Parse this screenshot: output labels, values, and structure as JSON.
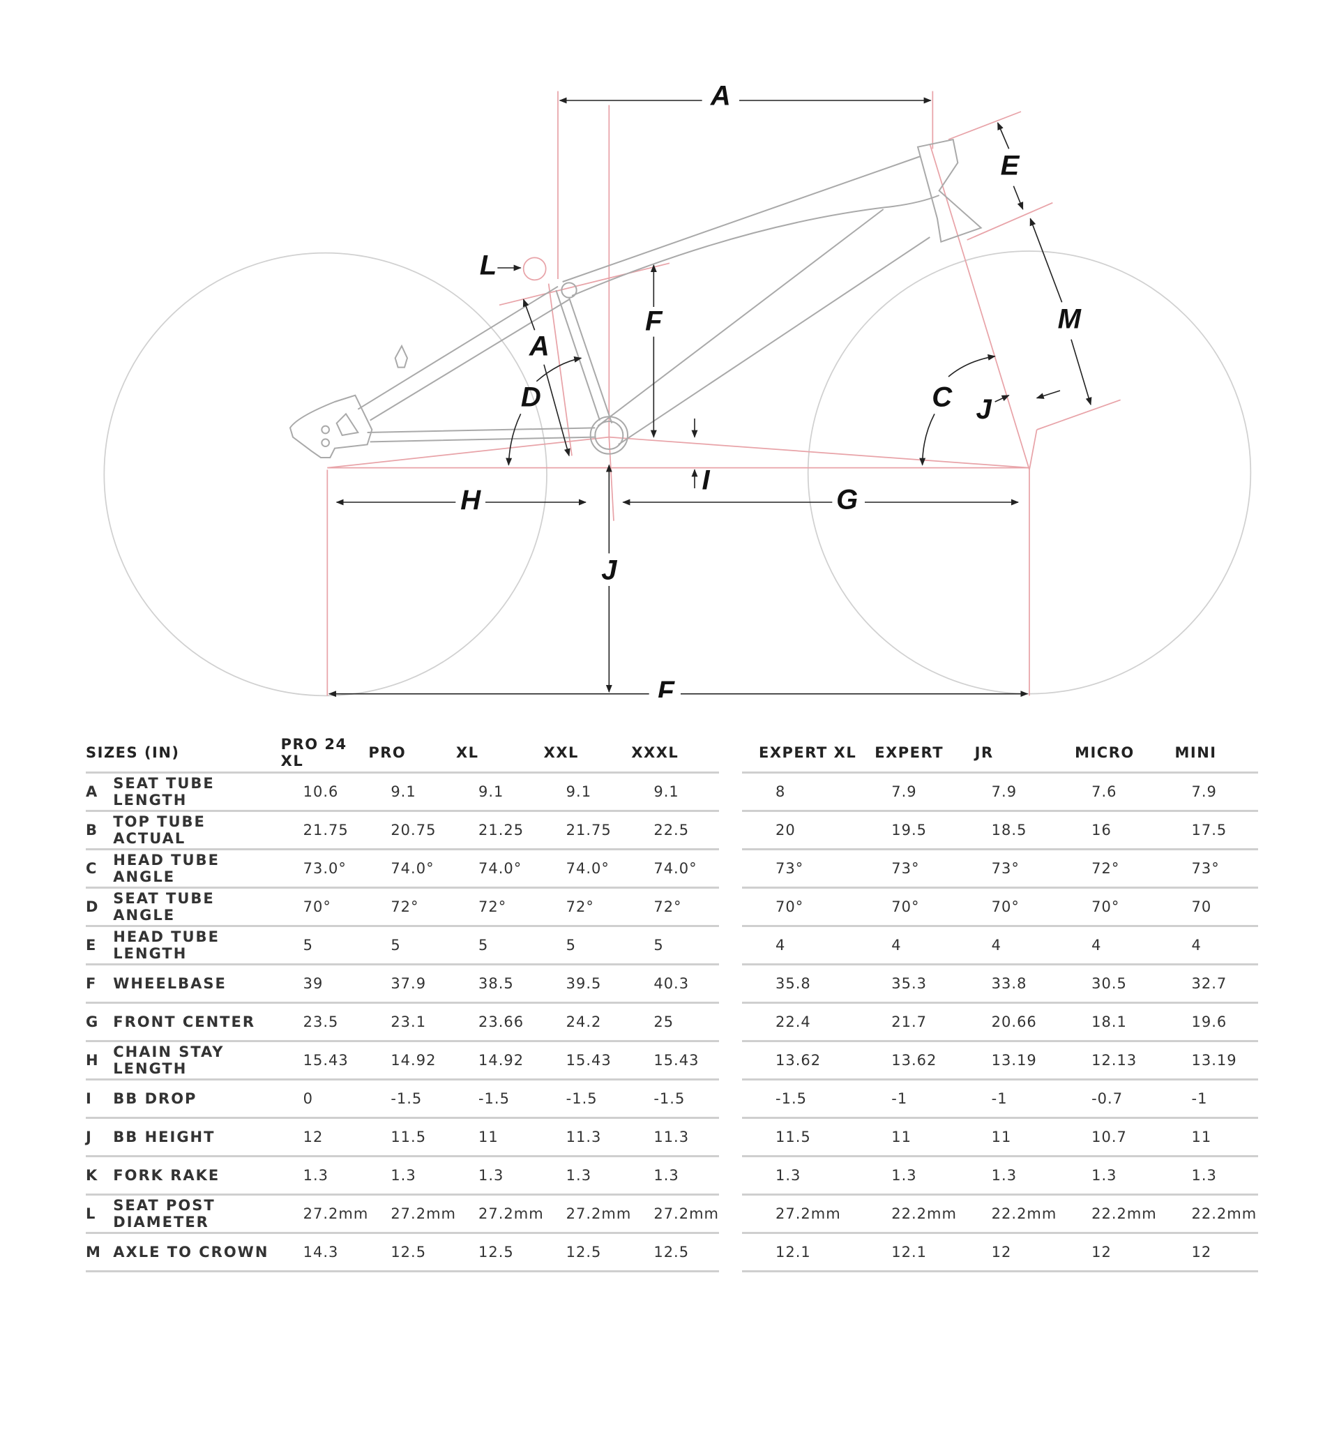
{
  "diagram": {
    "labels": {
      "A_top": "A",
      "E": "E",
      "L": "L",
      "F_vert": "F",
      "M": "M",
      "A_seat": "A",
      "D": "D",
      "C": "C",
      "J_fork": "J",
      "I": "I",
      "H": "H",
      "G": "G",
      "J_bb": "J",
      "F_bottom": "F"
    },
    "colors": {
      "frame": "#a9a9a9",
      "dimension": "#e8a3a8",
      "wheel": "#cccccc",
      "arrow": "#222222"
    }
  },
  "table": {
    "sizes_label": "SIZES (IN)",
    "left_sizes": [
      "PRO 24 XL",
      "PRO",
      "XL",
      "XXL",
      "XXXL"
    ],
    "right_sizes": [
      "EXPERT XL",
      "EXPERT",
      "JR",
      "MICRO",
      "MINI"
    ],
    "rows": [
      {
        "key": "A",
        "name": "SEAT TUBE LENGTH",
        "left": [
          "10.6",
          "9.1",
          "9.1",
          "9.1",
          "9.1"
        ],
        "right": [
          "8",
          "7.9",
          "7.9",
          "7.6",
          "7.9"
        ]
      },
      {
        "key": "B",
        "name": "TOP TUBE ACTUAL",
        "left": [
          "21.75",
          "20.75",
          "21.25",
          "21.75",
          "22.5"
        ],
        "right": [
          "20",
          "19.5",
          "18.5",
          "16",
          "17.5"
        ]
      },
      {
        "key": "C",
        "name": "HEAD TUBE ANGLE",
        "left": [
          "73.0°",
          "74.0°",
          "74.0°",
          "74.0°",
          "74.0°"
        ],
        "right": [
          "73°",
          "73°",
          "73°",
          "72°",
          "73°"
        ]
      },
      {
        "key": "D",
        "name": "SEAT TUBE ANGLE",
        "left": [
          "70°",
          "72°",
          "72°",
          "72°",
          "72°"
        ],
        "right": [
          "70°",
          "70°",
          "70°",
          "70°",
          "70"
        ]
      },
      {
        "key": "E",
        "name": "HEAD TUBE LENGTH",
        "left": [
          "5",
          "5",
          "5",
          "5",
          "5"
        ],
        "right": [
          "4",
          "4",
          "4",
          "4",
          "4"
        ]
      },
      {
        "key": "F",
        "name": "WHEELBASE",
        "left": [
          "39",
          "37.9",
          "38.5",
          "39.5",
          "40.3"
        ],
        "right": [
          "35.8",
          "35.3",
          "33.8",
          "30.5",
          "32.7"
        ]
      },
      {
        "key": "G",
        "name": "FRONT CENTER",
        "left": [
          "23.5",
          "23.1",
          "23.66",
          "24.2",
          "25"
        ],
        "right": [
          "22.4",
          "21.7",
          "20.66",
          "18.1",
          "19.6"
        ]
      },
      {
        "key": "H",
        "name": "CHAIN STAY LENGTH",
        "left": [
          "15.43",
          "14.92",
          "14.92",
          "15.43",
          "15.43"
        ],
        "right": [
          "13.62",
          "13.62",
          "13.19",
          "12.13",
          "13.19"
        ]
      },
      {
        "key": "I",
        "name": "BB DROP",
        "left": [
          "0",
          "-1.5",
          "-1.5",
          "-1.5",
          "-1.5"
        ],
        "right": [
          "-1.5",
          "-1",
          "-1",
          "-0.7",
          "-1"
        ]
      },
      {
        "key": "J",
        "name": "BB HEIGHT",
        "left": [
          "12",
          "11.5",
          "11",
          "11.3",
          "11.3"
        ],
        "right": [
          "11.5",
          "11",
          "11",
          "10.7",
          "11"
        ]
      },
      {
        "key": "K",
        "name": "FORK RAKE",
        "left": [
          "1.3",
          "1.3",
          "1.3",
          "1.3",
          "1.3"
        ],
        "right": [
          "1.3",
          "1.3",
          "1.3",
          "1.3",
          "1.3"
        ]
      },
      {
        "key": "L",
        "name": "SEAT POST DIAMETER",
        "left": [
          "27.2mm",
          "27.2mm",
          "27.2mm",
          "27.2mm",
          "27.2mm"
        ],
        "right": [
          "27.2mm",
          "22.2mm",
          "22.2mm",
          "22.2mm",
          "22.2mm"
        ]
      },
      {
        "key": "M",
        "name": "AXLE TO CROWN",
        "left": [
          "14.3",
          "12.5",
          "12.5",
          "12.5",
          "12.5"
        ],
        "right": [
          "12.1",
          "12.1",
          "12",
          "12",
          "12"
        ]
      }
    ]
  }
}
